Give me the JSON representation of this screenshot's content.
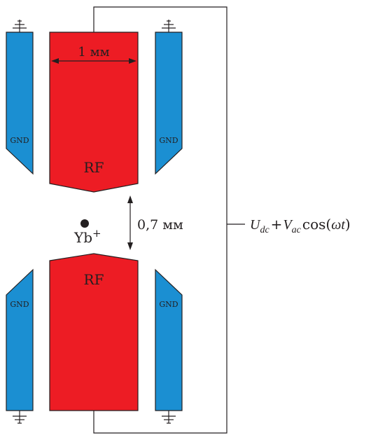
{
  "labels": {
    "width": "1 мм",
    "gap": "0,7 мм",
    "rf_top": "RF",
    "rf_bottom": "RF",
    "gnd": "GND",
    "ion": "Yb",
    "ion_charge": "+"
  },
  "voltage": {
    "U": "U",
    "U_sub": "dc",
    "plus": "+",
    "V": "V",
    "V_sub": "ac",
    "cos": "cos(",
    "omega": "ω",
    "t": "t",
    "close": ")"
  },
  "colors": {
    "rf": "#ed1c24",
    "gnd": "#1b8fd2",
    "stroke": "#231f20"
  }
}
